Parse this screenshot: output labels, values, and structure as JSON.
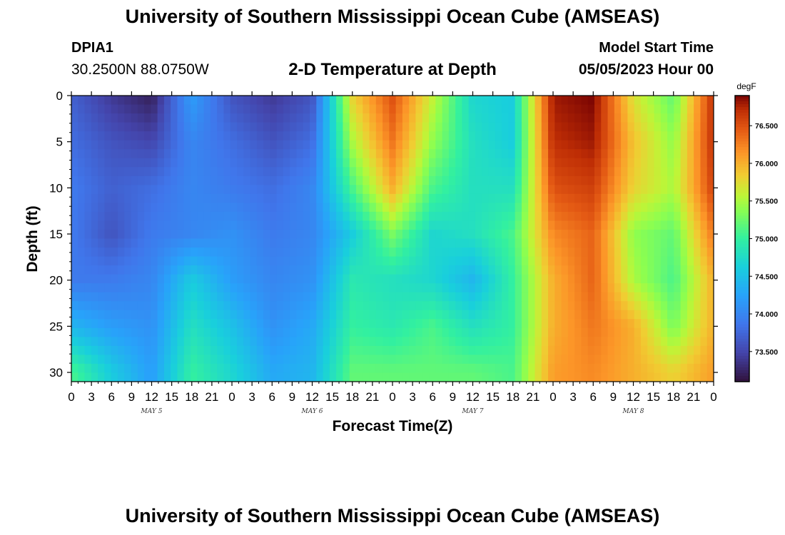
{
  "header": {
    "title": "University of Southern Mississippi Ocean Cube (AMSEAS)",
    "station": "DPIA1",
    "coordinates": "30.2500N  88.0750W",
    "subtitle": "2-D Temperature at Depth",
    "model_start_label": "Model Start Time",
    "model_start_value": "05/05/2023 Hour 00"
  },
  "footer": {
    "title_repeat": "University of Southern Mississippi Ocean Cube (AMSEAS)"
  },
  "chart_data": {
    "type": "heatmap",
    "title": "2-D Temperature at Depth",
    "xlabel": "Forecast Time(Z)",
    "ylabel": "Depth (ft)",
    "x_hours": [
      0,
      6,
      12,
      18,
      24,
      30,
      36,
      42,
      48,
      54,
      60,
      66,
      72,
      78,
      84,
      90,
      96
    ],
    "xlim": [
      0,
      96
    ],
    "x_tick_labels": [
      "0",
      "3",
      "6",
      "9",
      "12",
      "15",
      "18",
      "21",
      "0",
      "3",
      "6",
      "9",
      "12",
      "15",
      "18",
      "21",
      "0",
      "3",
      "6",
      "9",
      "12",
      "15",
      "18",
      "21",
      "0",
      "3",
      "6",
      "9",
      "12",
      "15",
      "18",
      "21",
      "0"
    ],
    "day_labels": [
      "MAY 5",
      "MAY 6",
      "MAY 7",
      "MAY 8"
    ],
    "depth_ft": [
      0,
      5,
      10,
      15,
      20,
      25,
      30
    ],
    "ylim": [
      0,
      31
    ],
    "y_reversed": true,
    "y_tick_labels": [
      "0",
      "5",
      "10",
      "15",
      "20",
      "25",
      "30"
    ],
    "values_degF": [
      [
        73.7,
        73.4,
        73.2,
        74.2,
        73.6,
        73.4,
        73.6,
        75.8,
        76.5,
        75.6,
        74.7,
        74.6,
        76.8,
        76.9,
        75.7,
        75.2,
        76.7
      ],
      [
        73.8,
        73.6,
        73.5,
        74.0,
        73.8,
        73.6,
        73.8,
        75.5,
        76.3,
        75.4,
        74.8,
        74.6,
        76.7,
        76.8,
        75.9,
        75.4,
        76.7
      ],
      [
        73.9,
        73.7,
        73.8,
        74.0,
        73.9,
        73.8,
        74.0,
        75.1,
        76.0,
        75.1,
        74.8,
        74.8,
        76.5,
        76.6,
        75.8,
        75.5,
        76.6
      ],
      [
        73.9,
        73.6,
        73.9,
        74.0,
        74.1,
        73.9,
        74.0,
        74.6,
        75.3,
        74.7,
        74.8,
        75.1,
        76.2,
        76.4,
        75.4,
        75.2,
        76.3
      ],
      [
        73.9,
        73.9,
        74.0,
        74.6,
        74.2,
        74.0,
        74.1,
        74.9,
        74.8,
        74.7,
        74.4,
        75.0,
        76.0,
        76.4,
        75.5,
        75.1,
        76.0
      ],
      [
        74.4,
        74.2,
        74.1,
        74.8,
        74.5,
        74.1,
        74.3,
        75.0,
        74.9,
        75.1,
        74.8,
        75.0,
        76.0,
        76.3,
        76.0,
        75.3,
        76.0
      ],
      [
        75.1,
        74.6,
        74.2,
        75.0,
        74.7,
        74.3,
        74.4,
        75.2,
        75.2,
        75.2,
        75.2,
        75.1,
        76.1,
        76.2,
        76.0,
        75.8,
        76.1
      ]
    ],
    "colorbar": {
      "unit": "degF",
      "min": 73.1,
      "max": 76.9,
      "ticks": [
        "73.500",
        "74.000",
        "74.500",
        "75.000",
        "75.500",
        "76.000",
        "76.500"
      ],
      "tick_values": [
        73.5,
        74.0,
        74.5,
        75.0,
        75.5,
        76.0,
        76.5
      ],
      "colormap": "turbo"
    },
    "grid": false
  }
}
